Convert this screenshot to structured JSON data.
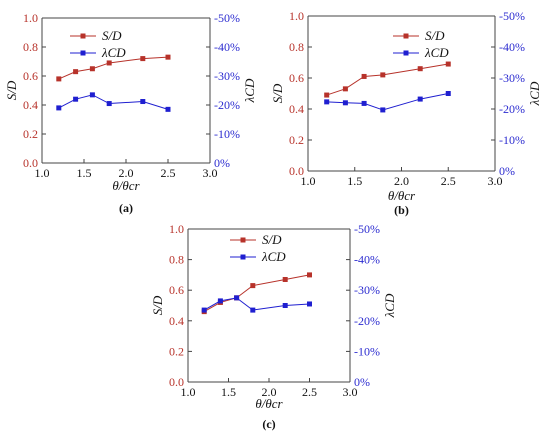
{
  "figure": {
    "label_a": "(a)",
    "label_b": "(b)",
    "label_c": "(c)"
  },
  "colors": {
    "sd": "#b7322a",
    "lambda": "#1f1fd0",
    "axis_left": "#b7322a",
    "axis_right": "#2c2cd0"
  },
  "chart_data": [
    {
      "type": "line",
      "panel": "(a)",
      "xlabel": "θ/θcr",
      "ylabel_left": "S/D",
      "ylabel_right": "λCD",
      "xlim": [
        1.0,
        3.0
      ],
      "xticks": [
        "1.0",
        "1.5",
        "2.0",
        "2.5",
        "3.0"
      ],
      "ylim_left": [
        0.0,
        1.0
      ],
      "yticks_left": [
        "0.0",
        "0.2",
        "0.4",
        "0.6",
        "0.8",
        "1.0"
      ],
      "ylim_right": [
        0,
        -50
      ],
      "yticks_right": [
        "0%",
        "-10%",
        "-20%",
        "-30%",
        "-40%",
        "-50%"
      ],
      "legend": "top-center",
      "series": [
        {
          "name": "S/D",
          "axis": "left",
          "x": [
            1.2,
            1.4,
            1.6,
            1.8,
            2.2,
            2.5
          ],
          "values": [
            0.58,
            0.63,
            0.65,
            0.69,
            0.72,
            0.73
          ]
        },
        {
          "name": "λCD",
          "axis": "right",
          "x": [
            1.2,
            1.4,
            1.6,
            1.8,
            2.2,
            2.5
          ],
          "values": [
            -19.0,
            -22.0,
            -23.5,
            -20.5,
            -21.2,
            -18.5
          ]
        }
      ]
    },
    {
      "type": "line",
      "panel": "(b)",
      "xlabel": "θ/θcr",
      "ylabel_left": "S/D",
      "ylabel_right": "λCD",
      "xlim": [
        1.0,
        3.0
      ],
      "xticks": [
        "1.0",
        "1.5",
        "2.0",
        "2.5",
        "3.0"
      ],
      "ylim_left": [
        0.0,
        1.0
      ],
      "yticks_left": [
        "0.0",
        "0.2",
        "0.4",
        "0.6",
        "0.8",
        "1.0"
      ],
      "ylim_right": [
        0,
        -50
      ],
      "yticks_right": [
        "0%",
        "-10%",
        "-20%",
        "-30%",
        "-40%",
        "-50%"
      ],
      "legend": "top-right",
      "series": [
        {
          "name": "S/D",
          "axis": "left",
          "x": [
            1.2,
            1.4,
            1.6,
            1.8,
            2.2,
            2.5
          ],
          "values": [
            0.49,
            0.53,
            0.61,
            0.62,
            0.66,
            0.69
          ]
        },
        {
          "name": "λCD",
          "axis": "right",
          "x": [
            1.2,
            1.4,
            1.6,
            1.8,
            2.2,
            2.5
          ],
          "values": [
            -22.3,
            -22.0,
            -21.8,
            -19.7,
            -23.2,
            -25.0
          ]
        }
      ]
    },
    {
      "type": "line",
      "panel": "(c)",
      "xlabel": "θ/θcr",
      "ylabel_left": "S/D",
      "ylabel_right": "λCD",
      "xlim": [
        1.0,
        3.0
      ],
      "xticks": [
        "1.0",
        "1.5",
        "2.0",
        "2.5",
        "3.0"
      ],
      "ylim_left": [
        0.0,
        1.0
      ],
      "yticks_left": [
        "0.0",
        "0.2",
        "0.4",
        "0.6",
        "0.8",
        "1.0"
      ],
      "ylim_right": [
        0,
        -50
      ],
      "yticks_right": [
        "0%",
        "-10%",
        "-20%",
        "-30%",
        "-40%",
        "-50%"
      ],
      "legend": "top-center",
      "series": [
        {
          "name": "S/D",
          "axis": "left",
          "x": [
            1.2,
            1.4,
            1.6,
            1.8,
            2.2,
            2.5
          ],
          "values": [
            0.46,
            0.52,
            0.55,
            0.63,
            0.67,
            0.7
          ]
        },
        {
          "name": "λCD",
          "axis": "right",
          "x": [
            1.2,
            1.4,
            1.6,
            1.8,
            2.2,
            2.5
          ],
          "values": [
            -23.5,
            -26.5,
            -27.5,
            -23.5,
            -25.0,
            -25.5
          ]
        }
      ]
    }
  ]
}
